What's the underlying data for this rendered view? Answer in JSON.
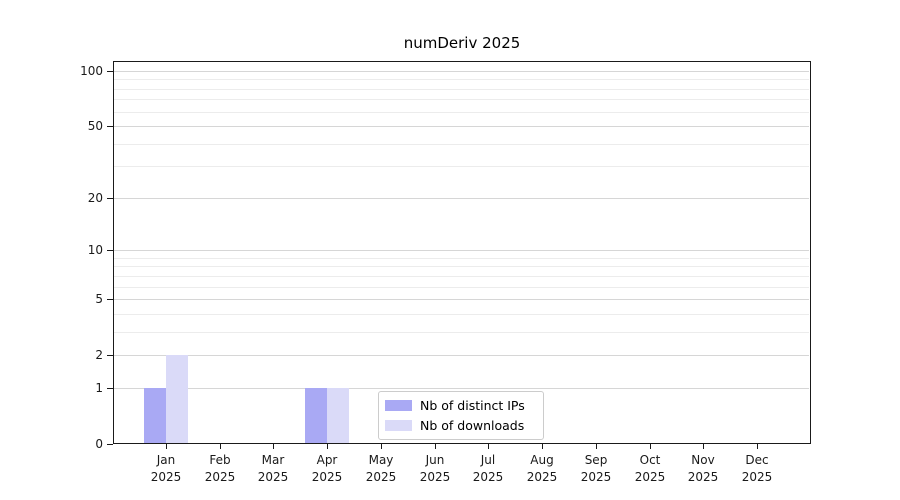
{
  "figure": {
    "title": "numDeriv 2025"
  },
  "chart_data": {
    "type": "bar",
    "title": "numDeriv 2025",
    "categories": [
      {
        "month": "Jan",
        "year": "2025"
      },
      {
        "month": "Feb",
        "year": "2025"
      },
      {
        "month": "Mar",
        "year": "2025"
      },
      {
        "month": "Apr",
        "year": "2025"
      },
      {
        "month": "May",
        "year": "2025"
      },
      {
        "month": "Jun",
        "year": "2025"
      },
      {
        "month": "Jul",
        "year": "2025"
      },
      {
        "month": "Aug",
        "year": "2025"
      },
      {
        "month": "Sep",
        "year": "2025"
      },
      {
        "month": "Oct",
        "year": "2025"
      },
      {
        "month": "Nov",
        "year": "2025"
      },
      {
        "month": "Dec",
        "year": "2025"
      }
    ],
    "series": [
      {
        "name": "Nb of distinct IPs",
        "color": "#a9a9f4",
        "values": [
          1,
          0,
          0,
          1,
          0,
          0,
          0,
          0,
          0,
          0,
          0,
          0
        ]
      },
      {
        "name": "Nb of downloads",
        "color": "#dadaf8",
        "values": [
          2,
          0,
          0,
          1,
          0,
          0,
          0,
          0,
          0,
          0,
          0,
          0
        ]
      }
    ],
    "y_axis": {
      "scale": "log1p",
      "ticks": [
        0,
        1,
        2,
        5,
        10,
        20,
        50,
        100
      ],
      "minor_gridlines": [
        3,
        4,
        6,
        7,
        8,
        9,
        30,
        40,
        60,
        70,
        80,
        90
      ]
    },
    "x_axis": {
      "tick_count": 12
    },
    "legend": {
      "position": "inside-bottom-center"
    },
    "style": {
      "major_grid_color": "#d6d6d6",
      "minor_grid_color": "#ececec",
      "spine_color": "#1a1a1a",
      "background": "#ffffff"
    }
  }
}
